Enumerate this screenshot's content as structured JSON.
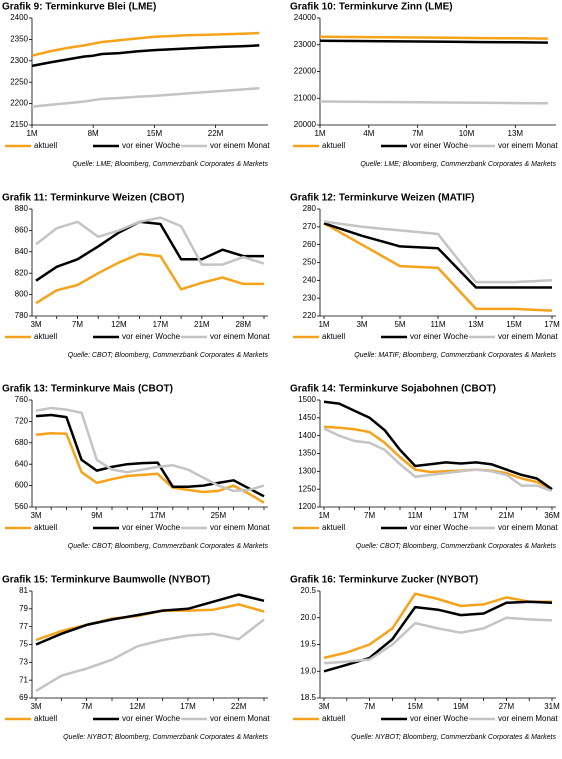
{
  "chart_data": [
    {
      "type": "line",
      "title": "Grafik 9: Terminkurve Blei (LME)",
      "source": "Quelle: LME; Bloomberg, Commerzbank Corporates & Markets",
      "x": [
        1,
        3,
        5,
        7,
        8,
        9,
        11,
        13,
        15,
        17,
        19,
        21,
        23,
        25,
        27
      ],
      "xlim": [
        1,
        28
      ],
      "xticks": [
        {
          "value": 1,
          "label": "1M"
        },
        {
          "value": 8,
          "label": "8M"
        },
        {
          "value": 15,
          "label": "15M"
        },
        {
          "value": 22,
          "label": "22M"
        }
      ],
      "ylim": [
        2150,
        2400
      ],
      "yticks": [
        2150,
        2200,
        2250,
        2300,
        2350,
        2400
      ],
      "series": [
        {
          "name": "aktuell",
          "color": "#f7a21b",
          "values": [
            2312,
            2322,
            2330,
            2336,
            2340,
            2344,
            2348,
            2352,
            2356,
            2358,
            2360,
            2361,
            2362,
            2363,
            2365
          ]
        },
        {
          "name": "vor einer Woche",
          "color": "#000000",
          "values": [
            2288,
            2296,
            2303,
            2310,
            2312,
            2316,
            2318,
            2322,
            2325,
            2327,
            2329,
            2331,
            2333,
            2334,
            2336
          ]
        },
        {
          "name": "vor einem Monat",
          "color": "#c4c4c4",
          "values": [
            2193,
            2197,
            2201,
            2205,
            2208,
            2211,
            2213,
            2216,
            2218,
            2221,
            2224,
            2227,
            2230,
            2233,
            2236
          ]
        }
      ]
    },
    {
      "type": "line",
      "title": "Grafik 10: Terminkurve Zinn (LME)",
      "source": "Quelle: LME; Bloomberg, Commerzbank Corporates & Markets",
      "x": [
        1,
        3,
        5,
        7,
        9,
        11,
        13,
        15
      ],
      "xlim": [
        1,
        15.5
      ],
      "xticks": [
        {
          "value": 1,
          "label": "1M"
        },
        {
          "value": 4,
          "label": "4M"
        },
        {
          "value": 7,
          "label": "7M"
        },
        {
          "value": 10,
          "label": "10M"
        },
        {
          "value": 13,
          "label": "13M"
        }
      ],
      "ylim": [
        20000,
        24000
      ],
      "yticks": [
        20000,
        21000,
        22000,
        23000,
        24000
      ],
      "series": [
        {
          "name": "aktuell",
          "color": "#f7a21b",
          "values": [
            23300,
            23290,
            23280,
            23270,
            23260,
            23250,
            23240,
            23230
          ]
        },
        {
          "name": "vor einer Woche",
          "color": "#000000",
          "values": [
            23150,
            23140,
            23130,
            23120,
            23110,
            23100,
            23090,
            23080
          ]
        },
        {
          "name": "vor einem Monat",
          "color": "#c4c4c4",
          "values": [
            20880,
            20870,
            20860,
            20850,
            20840,
            20830,
            20820,
            20810
          ]
        }
      ]
    },
    {
      "type": "line",
      "title": "Grafik 11: Terminkurve Weizen (CBOT)",
      "source": "Quelle: CBOT; Bloomberg, Commerzbank Corporates & Markets",
      "categories": [
        "3M",
        null,
        "7M",
        null,
        "12M",
        null,
        "17M",
        null,
        "21M",
        null,
        "28M",
        null
      ],
      "ylim": [
        780,
        880
      ],
      "yticks": [
        780,
        800,
        820,
        840,
        860,
        880
      ],
      "series": [
        {
          "name": "aktuell",
          "color": "#f7a21b",
          "values": [
            792,
            804,
            809,
            820,
            830,
            838,
            836,
            805,
            811,
            816,
            810,
            810
          ]
        },
        {
          "name": "vor einer Woche",
          "color": "#000000",
          "values": [
            813,
            826,
            833,
            845,
            858,
            868,
            866,
            833,
            833,
            842,
            836,
            836
          ]
        },
        {
          "name": "vor einem Monat",
          "color": "#c4c4c4",
          "values": [
            847,
            862,
            868,
            854,
            860,
            868,
            872,
            864,
            828,
            828,
            835,
            829
          ]
        }
      ]
    },
    {
      "type": "line",
      "title": "Grafik 12: Terminkurve Weizen (MATIF)",
      "source": "Quelle: MATIF; Bloomberg, Commerzbank Corporates & Markets",
      "categories": [
        "1M",
        "3M",
        "5M",
        "11M",
        "13M",
        "15M",
        "17M"
      ],
      "ylim": [
        220,
        280
      ],
      "yticks": [
        220,
        230,
        240,
        250,
        260,
        270,
        280
      ],
      "series": [
        {
          "name": "aktuell",
          "color": "#f7a21b",
          "values": [
            272,
            260,
            248,
            247,
            224,
            224,
            223
          ]
        },
        {
          "name": "vor einer Woche",
          "color": "#000000",
          "values": [
            272,
            265,
            259,
            258,
            236,
            236,
            236
          ]
        },
        {
          "name": "vor einem Monat",
          "color": "#c4c4c4",
          "values": [
            273,
            270,
            268,
            266,
            239,
            239,
            240
          ]
        }
      ]
    },
    {
      "type": "line",
      "title": "Grafik 13: Terminkurve Mais (CBOT)",
      "source": "Quelle: CBOT; Bloomberg, Commerzbank Corporates & Markets",
      "categories": [
        "3M",
        null,
        null,
        null,
        "9M",
        null,
        null,
        null,
        "17M",
        null,
        null,
        null,
        "25M",
        null,
        null,
        null
      ],
      "ylim": [
        560,
        760
      ],
      "yticks": [
        560,
        600,
        640,
        680,
        720,
        760
      ],
      "series": [
        {
          "name": "aktuell",
          "color": "#f7a21b",
          "values": [
            695,
            698,
            697,
            625,
            605,
            612,
            618,
            620,
            622,
            596,
            592,
            588,
            590,
            600,
            585,
            568
          ]
        },
        {
          "name": "vor einer Woche",
          "color": "#000000",
          "values": [
            730,
            732,
            728,
            648,
            628,
            635,
            640,
            642,
            643,
            598,
            598,
            600,
            605,
            610,
            595,
            580
          ]
        },
        {
          "name": "vor einem Monat",
          "color": "#c4c4c4",
          "values": [
            740,
            745,
            742,
            736,
            648,
            630,
            625,
            630,
            635,
            638,
            630,
            615,
            600,
            590,
            592,
            600
          ]
        }
      ]
    },
    {
      "type": "line",
      "title": "Grafik 14: Terminkurve Sojabohnen (CBOT)",
      "source": "Quelle: CBOT; Bloomberg, Commerzbank Corporates & Markets",
      "categories": [
        "1M",
        null,
        null,
        "7M",
        null,
        null,
        "11M",
        null,
        null,
        "17M",
        null,
        null,
        "21M",
        null,
        null,
        "36M"
      ],
      "ylim": [
        1200,
        1500
      ],
      "yticks": [
        1200,
        1250,
        1300,
        1350,
        1400,
        1450,
        1500
      ],
      "series": [
        {
          "name": "aktuell",
          "color": "#f7a21b",
          "values": [
            1425,
            1422,
            1418,
            1410,
            1380,
            1340,
            1305,
            1298,
            1300,
            1302,
            1305,
            1302,
            1295,
            1280,
            1270,
            1250
          ]
        },
        {
          "name": "vor einer Woche",
          "color": "#000000",
          "values": [
            1495,
            1490,
            1470,
            1450,
            1415,
            1360,
            1315,
            1320,
            1325,
            1322,
            1325,
            1320,
            1305,
            1290,
            1280,
            1250
          ]
        },
        {
          "name": "vor einem Monat",
          "color": "#c4c4c4",
          "values": [
            1420,
            1400,
            1385,
            1380,
            1360,
            1320,
            1285,
            1290,
            1295,
            1300,
            1305,
            1300,
            1290,
            1260,
            1260,
            1245
          ]
        }
      ]
    },
    {
      "type": "line",
      "title": "Grafik 15: Terminkurve Baumwolle (NYBOT)",
      "source": "Quelle: NYBOT; Bloomberg, Commerzbank Corporates & Markets",
      "categories": [
        "3M",
        null,
        "7M",
        null,
        "12M",
        null,
        "17M",
        null,
        "22M",
        null
      ],
      "ylim": [
        69,
        81
      ],
      "yticks": [
        69,
        71,
        73,
        75,
        77,
        79,
        81
      ],
      "series": [
        {
          "name": "aktuell",
          "color": "#f7a21b",
          "values": [
            75.5,
            76.5,
            77.2,
            77.9,
            78.2,
            78.8,
            78.8,
            78.9,
            79.5,
            78.7
          ]
        },
        {
          "name": "vor einer Woche",
          "color": "#000000",
          "values": [
            75.0,
            76.2,
            77.2,
            77.8,
            78.3,
            78.8,
            79.0,
            79.8,
            80.6,
            79.9
          ]
        },
        {
          "name": "vor einem Monat",
          "color": "#c4c4c4",
          "values": [
            69.8,
            71.5,
            72.3,
            73.3,
            74.8,
            75.5,
            76.0,
            76.2,
            75.6,
            77.8
          ]
        }
      ]
    },
    {
      "type": "line",
      "title": "Grafik 16: Terminkurve Zucker (NYBOT)",
      "source": "Quelle: NYBOT; Bloomberg, Commerzbank Corporates & Markets",
      "categories": [
        "3M",
        null,
        "7M",
        null,
        "15M",
        null,
        "19M",
        null,
        "27M",
        null,
        "31M"
      ],
      "ylim": [
        18.5,
        20.5
      ],
      "yticks": [
        18.5,
        {
          "value": 19,
          "label": "19.0"
        },
        19.5,
        {
          "value": 20,
          "label": "20.0"
        },
        20.5
      ],
      "series": [
        {
          "name": "aktuell",
          "color": "#f7a21b",
          "values": [
            19.25,
            19.35,
            19.5,
            19.8,
            20.45,
            20.35,
            20.22,
            20.25,
            20.38,
            20.3,
            20.3
          ]
        },
        {
          "name": "vor einer Woche",
          "color": "#000000",
          "values": [
            19.0,
            19.12,
            19.25,
            19.6,
            20.2,
            20.15,
            20.05,
            20.08,
            20.28,
            20.3,
            20.28
          ]
        },
        {
          "name": "vor einem Monat",
          "color": "#c4c4c4",
          "values": [
            19.15,
            19.18,
            19.22,
            19.5,
            19.9,
            19.8,
            19.72,
            19.8,
            20.0,
            19.97,
            19.95
          ]
        }
      ]
    }
  ]
}
